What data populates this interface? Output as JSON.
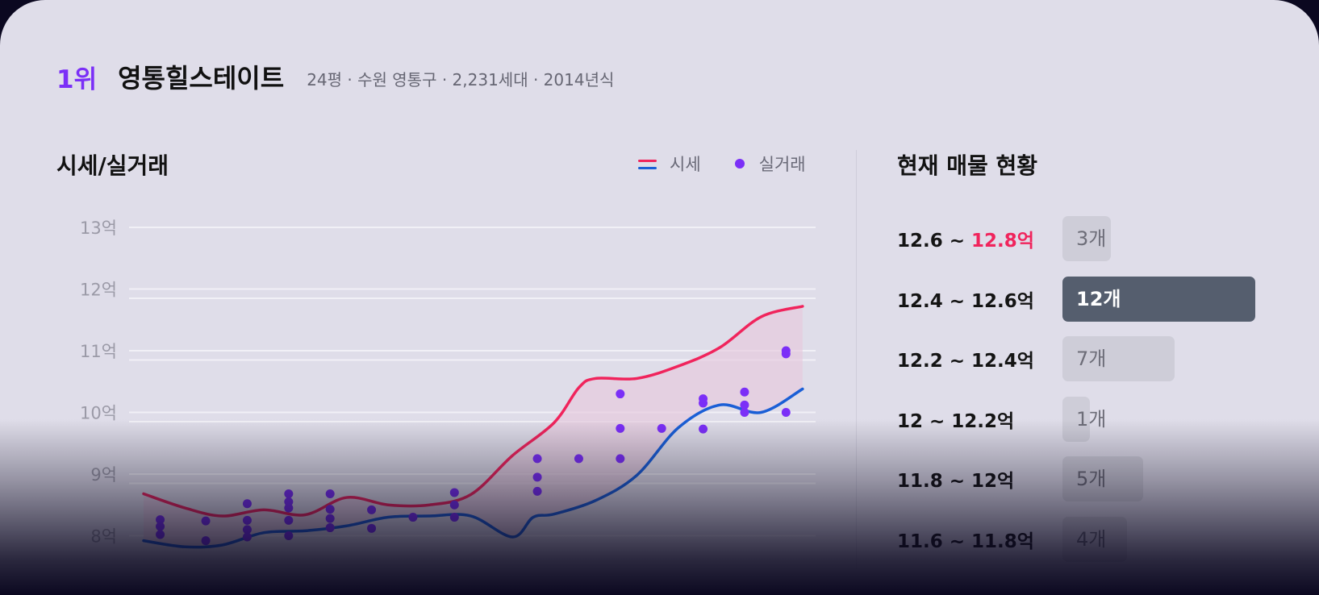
{
  "header": {
    "rank": "1위",
    "complex_name": "영통힐스테이트",
    "meta": "24평 · 수원 영통구 · 2,231세대 · 2014년식"
  },
  "chart_section": {
    "title": "시세/실거래",
    "legend_price": "시세",
    "legend_deal": "실거래"
  },
  "listing_section": {
    "title": "현재 매물 현황",
    "rows": [
      {
        "range_low": "12.6 ~ ",
        "range_high": "12.8억",
        "count_label": "3개",
        "count": 3,
        "highlight_high": true,
        "active": false
      },
      {
        "range_low": "12.4 ~ 12.6억",
        "range_high": "",
        "count_label": "12개",
        "count": 12,
        "highlight_high": false,
        "active": true
      },
      {
        "range_low": "12.2 ~ 12.4억",
        "range_high": "",
        "count_label": "7개",
        "count": 7,
        "highlight_high": false,
        "active": false
      },
      {
        "range_low": "12 ~ 12.2억",
        "range_high": "",
        "count_label": "1개",
        "count": 1,
        "highlight_high": false,
        "active": false
      },
      {
        "range_low": "11.8 ~ 12억",
        "range_high": "",
        "count_label": "5개",
        "count": 5,
        "highlight_high": false,
        "active": false
      },
      {
        "range_low": "11.6 ~ 11.8억",
        "range_high": "",
        "count_label": "4개",
        "count": 4,
        "highlight_high": false,
        "active": false
      }
    ]
  },
  "colors": {
    "accent_purple": "#7b2ff7",
    "upper_line": "#f0245c",
    "lower_line": "#1a5fd6",
    "band_fill": "#e7c9dd",
    "highlight_red": "#f0245c",
    "active_bar": "#555e6e"
  },
  "chart_data": {
    "type": "line",
    "yticks": [
      "13억",
      "12억",
      "11억",
      "10억",
      "9억",
      "8억"
    ],
    "ytick_values": [
      13,
      12,
      11,
      10,
      9,
      8
    ],
    "ylim": [
      7.4,
      13
    ],
    "xlim": [
      0,
      16
    ],
    "grid": true,
    "legend_position": "top-right",
    "series": [
      {
        "name": "시세",
        "kind": "upper",
        "x": [
          0,
          1,
          1.9,
          2.9,
          3.9,
          4.9,
          5.9,
          6.9,
          7.9,
          8.9,
          9.9,
          10.5,
          10.9,
          11.9,
          12.9,
          13.9,
          14.9,
          15.9
        ],
        "values": [
          8.68,
          8.45,
          8.32,
          8.42,
          8.34,
          8.62,
          8.5,
          8.5,
          8.67,
          9.3,
          9.83,
          10.4,
          10.55,
          10.55,
          10.75,
          11.05,
          11.55,
          11.72
        ]
      },
      {
        "name": "시세",
        "kind": "lower",
        "x": [
          0,
          1,
          1.9,
          2.9,
          3.9,
          4.9,
          5.9,
          6.9,
          7.9,
          8.9,
          9.4,
          9.9,
          10.9,
          11.9,
          12.9,
          13.9,
          14.9,
          15.9
        ],
        "values": [
          7.92,
          7.82,
          7.85,
          8.05,
          8.08,
          8.16,
          8.3,
          8.32,
          8.32,
          7.98,
          8.3,
          8.35,
          8.57,
          8.98,
          9.75,
          10.12,
          10.0,
          10.38
        ]
      },
      {
        "name": "실거래",
        "kind": "scatter",
        "points": [
          [
            0.4,
            8.26
          ],
          [
            0.4,
            8.15
          ],
          [
            0.4,
            8.02
          ],
          [
            1.5,
            8.24
          ],
          [
            1.5,
            7.92
          ],
          [
            2.5,
            8.52
          ],
          [
            2.5,
            8.25
          ],
          [
            2.5,
            8.1
          ],
          [
            2.5,
            7.98
          ],
          [
            3.5,
            8.68
          ],
          [
            3.5,
            8.55
          ],
          [
            3.5,
            8.45
          ],
          [
            3.5,
            8.25
          ],
          [
            3.5,
            8.0
          ],
          [
            4.5,
            8.68
          ],
          [
            4.5,
            8.43
          ],
          [
            4.5,
            8.28
          ],
          [
            4.5,
            8.13
          ],
          [
            5.5,
            8.42
          ],
          [
            5.5,
            8.12
          ],
          [
            6.5,
            8.3
          ],
          [
            7.5,
            8.7
          ],
          [
            7.5,
            8.5
          ],
          [
            7.5,
            8.3
          ],
          [
            9.5,
            9.25
          ],
          [
            9.5,
            8.95
          ],
          [
            9.5,
            8.72
          ],
          [
            10.5,
            9.25
          ],
          [
            11.5,
            10.3
          ],
          [
            11.5,
            9.74
          ],
          [
            11.5,
            9.25
          ],
          [
            12.5,
            9.74
          ],
          [
            13.5,
            10.22
          ],
          [
            13.5,
            10.15
          ],
          [
            13.5,
            9.73
          ],
          [
            14.5,
            10.33
          ],
          [
            14.5,
            10.12
          ],
          [
            14.5,
            10.0
          ],
          [
            15.5,
            11.0
          ],
          [
            15.5,
            10.95
          ],
          [
            15.5,
            10.0
          ]
        ]
      }
    ]
  }
}
